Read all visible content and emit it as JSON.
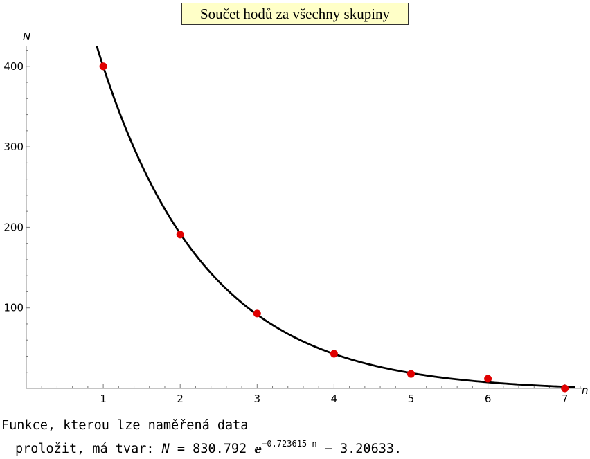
{
  "chart_data": {
    "type": "scatter",
    "title": "Součet hodů za všechny skupiny",
    "xlabel": "n",
    "ylabel": "N",
    "xlim": [
      0,
      7.2
    ],
    "ylim": [
      0,
      425
    ],
    "x_ticks": [
      1,
      2,
      3,
      4,
      5,
      6,
      7
    ],
    "y_ticks": [
      100,
      200,
      300,
      400
    ],
    "grid": false,
    "series": [
      {
        "points": [
          [
            1,
            400
          ],
          [
            2,
            191
          ],
          [
            3,
            93
          ],
          [
            4,
            43
          ],
          [
            5,
            18
          ],
          [
            6,
            12
          ],
          [
            7,
            0
          ]
        ],
        "color": "#e00000"
      }
    ],
    "fit_curve": {
      "a": 830.792,
      "b": 0.723615,
      "c": 3.20633,
      "color": "#000000"
    }
  },
  "caption": {
    "line1": "Funkce, kterou lze naměřená data",
    "line2_prefix": "proložit, má tvar: ",
    "var": "N",
    "eq": " = 830.792 ",
    "e_symbol": "ⅇ",
    "exponent": "−0.723615 n",
    "suffix": " − 3.20633."
  }
}
